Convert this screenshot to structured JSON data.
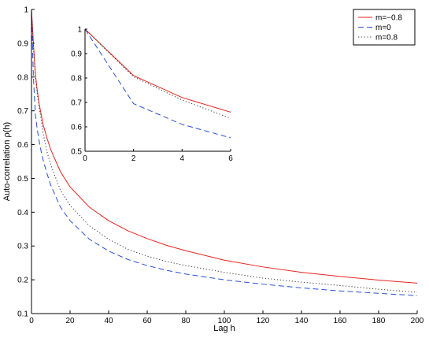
{
  "chart_data": [
    {
      "id": "main",
      "type": "line",
      "xlabel": "Lag h",
      "ylabel": "Auto-correlation ρ(h)",
      "xlim": [
        0,
        200
      ],
      "ylim": [
        0.1,
        1
      ],
      "xticks": [
        0,
        20,
        40,
        60,
        80,
        100,
        120,
        140,
        160,
        180,
        200
      ],
      "yticks": [
        0.1,
        0.2,
        0.3,
        0.4,
        0.5,
        0.6,
        0.7,
        0.8,
        0.9,
        1
      ],
      "grid": false,
      "legend_position": "top-right",
      "series": [
        {
          "name": "m=−0.8",
          "color": "#e8231e",
          "dash": "solid",
          "x": [
            0,
            1,
            2,
            3,
            4,
            5,
            6,
            8,
            10,
            15,
            20,
            30,
            40,
            50,
            60,
            70,
            80,
            100,
            120,
            140,
            160,
            180,
            200
          ],
          "y": [
            1,
            0.9,
            0.81,
            0.76,
            0.72,
            0.69,
            0.66,
            0.62,
            0.585,
            0.52,
            0.475,
            0.415,
            0.375,
            0.345,
            0.322,
            0.302,
            0.286,
            0.258,
            0.238,
            0.222,
            0.21,
            0.199,
            0.19
          ]
        },
        {
          "name": "m=0",
          "color": "#2a4fd6",
          "dash": "dashed",
          "x": [
            0,
            1,
            2,
            3,
            4,
            5,
            6,
            8,
            10,
            15,
            20,
            30,
            40,
            50,
            60,
            70,
            80,
            100,
            120,
            140,
            160,
            180,
            200
          ],
          "y": [
            1,
            0.8,
            0.69,
            0.645,
            0.61,
            0.58,
            0.555,
            0.515,
            0.48,
            0.415,
            0.375,
            0.32,
            0.285,
            0.26,
            0.242,
            0.228,
            0.217,
            0.2,
            0.187,
            0.176,
            0.167,
            0.16,
            0.153
          ]
        },
        {
          "name": "m=0.8",
          "color": "#333333",
          "dash": "dotted",
          "x": [
            0,
            1,
            2,
            3,
            4,
            5,
            6,
            8,
            10,
            15,
            20,
            30,
            40,
            50,
            60,
            70,
            80,
            100,
            120,
            140,
            160,
            180,
            200
          ],
          "y": [
            1,
            0.89,
            0.805,
            0.75,
            0.71,
            0.675,
            0.635,
            0.58,
            0.54,
            0.465,
            0.42,
            0.36,
            0.32,
            0.29,
            0.27,
            0.254,
            0.242,
            0.222,
            0.205,
            0.193,
            0.183,
            0.172,
            0.163
          ]
        }
      ]
    },
    {
      "id": "inset",
      "type": "line",
      "xlabel": "",
      "ylabel": "",
      "xlim": [
        0,
        6
      ],
      "ylim": [
        0.5,
        1
      ],
      "xticks": [
        0,
        2,
        4,
        6
      ],
      "yticks": [
        0.5,
        0.6,
        0.7,
        0.8,
        0.9,
        1
      ],
      "grid": false,
      "series": [
        {
          "color": "#e8231e",
          "dash": "solid",
          "x": [
            0,
            2,
            4,
            6
          ],
          "y": [
            1,
            0.81,
            0.72,
            0.66
          ]
        },
        {
          "color": "#2a4fd6",
          "dash": "dashed",
          "x": [
            0,
            2,
            4,
            6
          ],
          "y": [
            1,
            0.695,
            0.61,
            0.555
          ]
        },
        {
          "color": "#333333",
          "dash": "dotted",
          "x": [
            0,
            2,
            4,
            6
          ],
          "y": [
            1,
            0.805,
            0.71,
            0.635
          ]
        }
      ]
    }
  ]
}
